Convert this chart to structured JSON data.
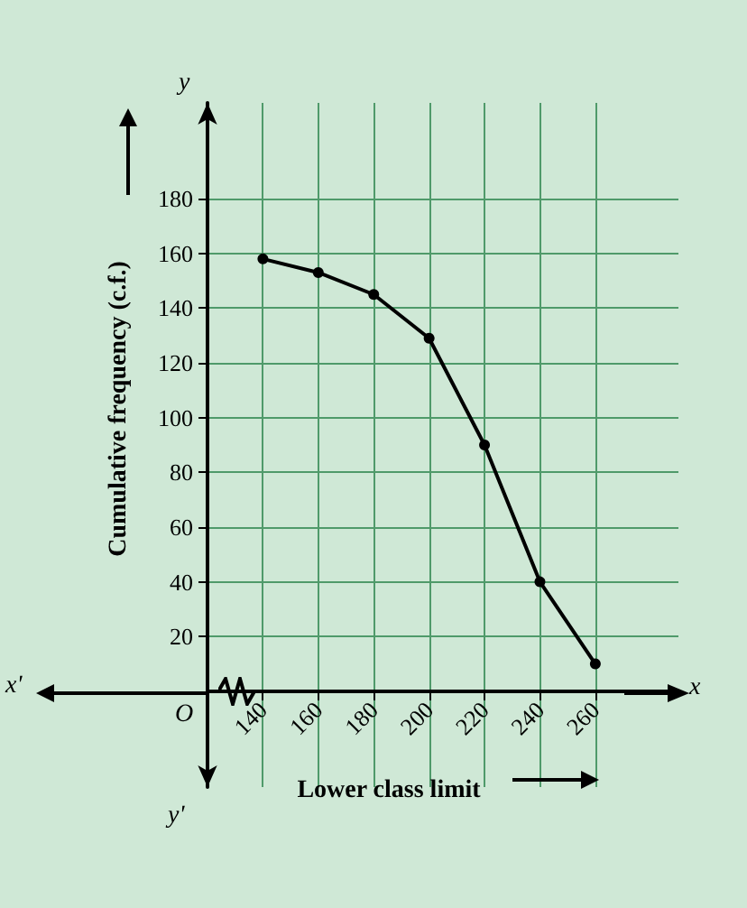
{
  "chart_data": {
    "type": "line",
    "xlabel": "Lower class limit",
    "ylabel": "Cumulative frequency (c.f.)",
    "x": [
      140,
      160,
      180,
      200,
      220,
      240,
      260
    ],
    "series": [
      {
        "color": "#000000",
        "values": [
          158,
          153,
          145,
          129,
          90,
          40,
          10
        ]
      }
    ],
    "xlim": [
      120,
      290
    ],
    "xticks": [
      140,
      160,
      180,
      200,
      220,
      240,
      260
    ],
    "ylim": [
      -35,
      215
    ],
    "yticks": [
      20,
      40,
      60,
      80,
      100,
      120,
      140,
      160,
      180
    ],
    "annotations": [
      "O",
      "x",
      "x'",
      "y",
      "y'"
    ],
    "grid": true,
    "marker": "circle",
    "line_style": "solid"
  }
}
